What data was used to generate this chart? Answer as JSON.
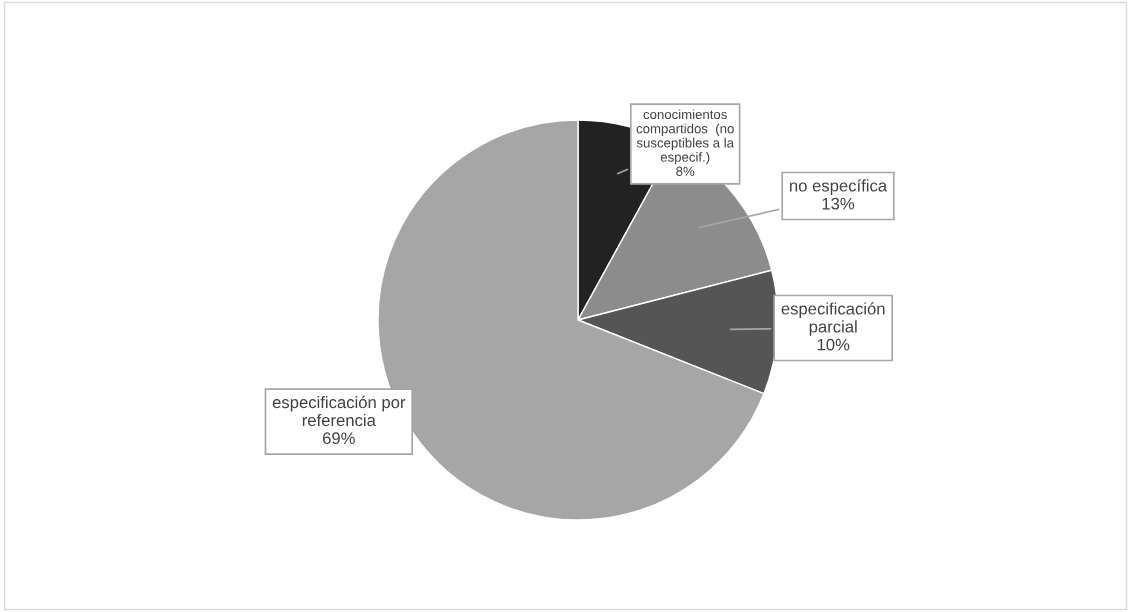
{
  "chart_data": {
    "type": "pie",
    "categories": [
      "conocimientos compartidos  (no susceptibles a la especif.)",
      "no específica",
      "especificación parcial",
      "especificación por referencia"
    ],
    "values": [
      8,
      13,
      10,
      69
    ],
    "colors": [
      "#222222",
      "#8c8c8c",
      "#555555",
      "#a6a6a6"
    ],
    "value_labels": [
      "8%",
      "13%",
      "10%",
      "69%"
    ]
  }
}
